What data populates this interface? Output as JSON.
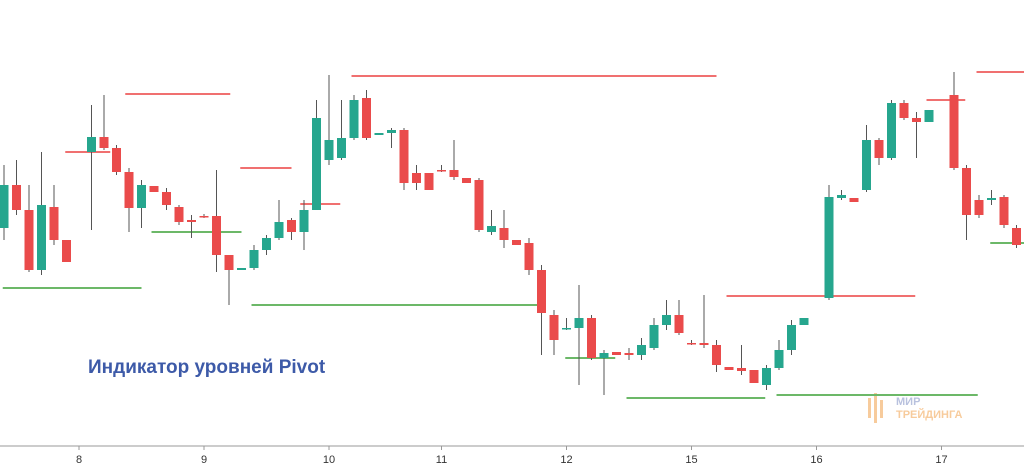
{
  "chart_data": {
    "type": "candlestick",
    "title": "Индикатор уровней Pivot",
    "x": [
      0,
      1,
      2,
      3,
      4,
      5,
      7,
      8,
      9,
      10,
      11,
      12,
      13,
      14,
      15,
      16,
      17,
      18,
      19,
      20,
      21,
      22,
      23,
      24,
      25,
      26,
      27,
      28,
      29,
      30,
      31,
      32,
      33,
      34,
      35,
      36,
      37,
      38,
      39,
      40,
      41,
      42,
      43,
      44,
      45,
      46,
      47,
      48,
      49,
      50,
      51,
      52,
      53,
      54,
      55,
      56,
      57,
      58,
      59,
      60,
      61,
      62,
      63,
      64,
      66,
      67,
      68,
      69,
      70,
      71,
      72,
      73,
      74,
      76,
      77,
      78,
      79,
      80,
      81
    ],
    "open": [
      222,
      265,
      240,
      180,
      243,
      210,
      298,
      313,
      302,
      278,
      242,
      264,
      258,
      243,
      230,
      234,
      234,
      195,
      180,
      182,
      200,
      212,
      230,
      218,
      240,
      290,
      292,
      312,
      352,
      315,
      317,
      320,
      277,
      277,
      280,
      280,
      272,
      270,
      218,
      222,
      210,
      207,
      180,
      135,
      121,
      122,
      132,
      92,
      98,
      97,
      95,
      102,
      125,
      135,
      107,
      107,
      105,
      83,
      82,
      80,
      65,
      82,
      100,
      125,
      152,
      252,
      252,
      260,
      310,
      292,
      347,
      332,
      328,
      355,
      282,
      250,
      250,
      253,
      222
    ],
    "high": [
      285,
      290,
      265,
      298,
      265,
      210,
      345,
      355,
      305,
      282,
      270,
      264,
      262,
      245,
      235,
      236,
      280,
      195,
      182,
      205,
      215,
      250,
      232,
      250,
      350,
      375,
      350,
      355,
      360,
      317,
      322,
      322,
      285,
      277,
      285,
      310,
      272,
      272,
      240,
      240,
      210,
      212,
      185,
      140,
      132,
      165,
      135,
      100,
      98,
      102,
      112,
      132,
      150,
      150,
      110,
      155,
      110,
      83,
      105,
      80,
      85,
      110,
      130,
      132,
      265,
      260,
      252,
      325,
      312,
      350,
      350,
      338,
      340,
      378,
      285,
      255,
      260,
      255,
      225
    ],
    "low": [
      210,
      235,
      178,
      175,
      205,
      188,
      220,
      300,
      275,
      218,
      222,
      258,
      240,
      225,
      212,
      232,
      178,
      145,
      180,
      180,
      195,
      210,
      210,
      200,
      240,
      285,
      290,
      310,
      310,
      315,
      302,
      260,
      260,
      260,
      278,
      270,
      267,
      218,
      215,
      202,
      205,
      175,
      95,
      95,
      120,
      65,
      90,
      55,
      95,
      90,
      90,
      100,
      120,
      115,
      105,
      102,
      78,
      80,
      75,
      67,
      60,
      80,
      95,
      125,
      150,
      250,
      248,
      258,
      285,
      290,
      330,
      292,
      328,
      280,
      210,
      232,
      245,
      222,
      202
    ],
    "close": [
      265,
      240,
      180,
      245,
      210,
      188,
      313,
      302,
      278,
      242,
      265,
      258,
      245,
      228,
      228,
      233,
      195,
      180,
      182,
      200,
      212,
      228,
      218,
      240,
      332,
      310,
      312,
      350,
      312,
      317,
      320,
      267,
      267,
      260,
      279,
      273,
      267,
      220,
      224,
      210,
      205,
      180,
      137,
      110,
      122,
      132,
      92,
      97,
      95,
      95,
      105,
      125,
      135,
      117,
      106,
      105,
      85,
      80,
      79,
      67,
      82,
      100,
      125,
      132,
      253,
      255,
      248,
      310,
      292,
      347,
      332,
      328,
      340,
      282,
      235,
      235,
      252,
      225,
      205
    ],
    "up_color": "#26a68e",
    "down_color": "#ea4b4b",
    "xlim": [
      -0.32,
      81.6
    ],
    "ylim": [
      0,
      450
    ],
    "xticks": [
      {
        "value": 6,
        "label": "8"
      },
      {
        "value": 16,
        "label": "9"
      },
      {
        "value": 26,
        "label": "10"
      },
      {
        "value": 35,
        "label": "11"
      },
      {
        "value": 45,
        "label": "12"
      },
      {
        "value": 55,
        "label": "15"
      },
      {
        "value": 65,
        "label": "16"
      },
      {
        "value": 75,
        "label": "17"
      }
    ],
    "levels": [
      {
        "x0": 9.7,
        "x1": 18.1,
        "value": 356,
        "color": "#f07070"
      },
      {
        "x0": 4.9,
        "x1": 8.5,
        "value": 298,
        "color": "#f07070"
      },
      {
        "x0": 18.9,
        "x1": 23.0,
        "value": 282,
        "color": "#f07070"
      },
      {
        "x0": 23.7,
        "x1": 26.9,
        "value": 246,
        "color": "#f07070"
      },
      {
        "x0": 27.8,
        "x1": 57.0,
        "value": 374,
        "color": "#f07070"
      },
      {
        "x0": 73.8,
        "x1": 76.9,
        "value": 350,
        "color": "#f07070"
      },
      {
        "x0": 77.8,
        "x1": 81.6,
        "value": 378,
        "color": "#f07070"
      },
      {
        "x0": 57.8,
        "x1": 72.9,
        "value": 154,
        "color": "#f07070"
      },
      {
        "x0": -0.1,
        "x1": 11.0,
        "value": 162,
        "color": "#6cb868"
      },
      {
        "x0": 11.8,
        "x1": 19.0,
        "value": 218,
        "color": "#6cb868"
      },
      {
        "x0": 19.8,
        "x1": 43.3,
        "value": 145,
        "color": "#6cb868"
      },
      {
        "x0": 44.9,
        "x1": 48.9,
        "value": 92,
        "color": "#6cb868"
      },
      {
        "x0": 49.8,
        "x1": 60.9,
        "value": 52,
        "color": "#6cb868"
      },
      {
        "x0": 61.8,
        "x1": 77.9,
        "value": 55,
        "color": "#6cb868"
      },
      {
        "x0": 78.9,
        "x1": 81.6,
        "value": 207,
        "color": "#6cb868"
      }
    ]
  },
  "watermark": [
    "МИР",
    "ТРЕЙДИНГА"
  ]
}
